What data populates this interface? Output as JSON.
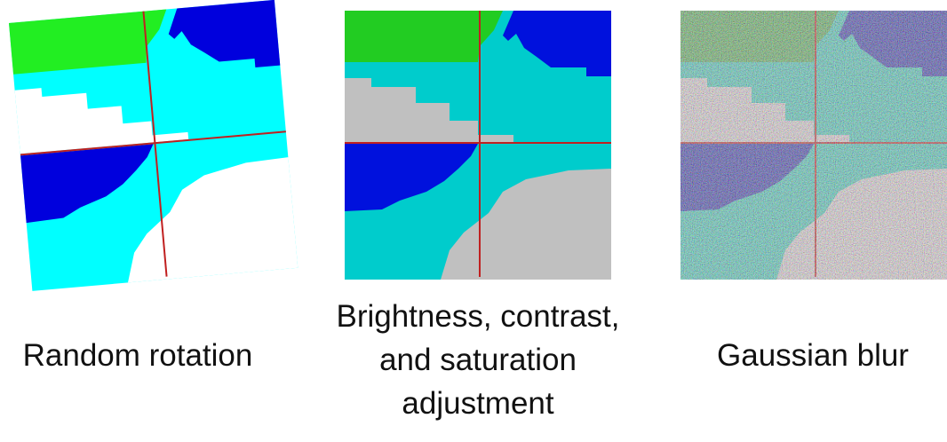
{
  "panels": [
    {
      "caption_lines": [
        "Random rotation"
      ]
    },
    {
      "caption_lines": [
        "Brightness, contrast,",
        "and saturation",
        "adjustment"
      ]
    },
    {
      "caption_lines": [
        "Gaussian blur"
      ]
    }
  ]
}
